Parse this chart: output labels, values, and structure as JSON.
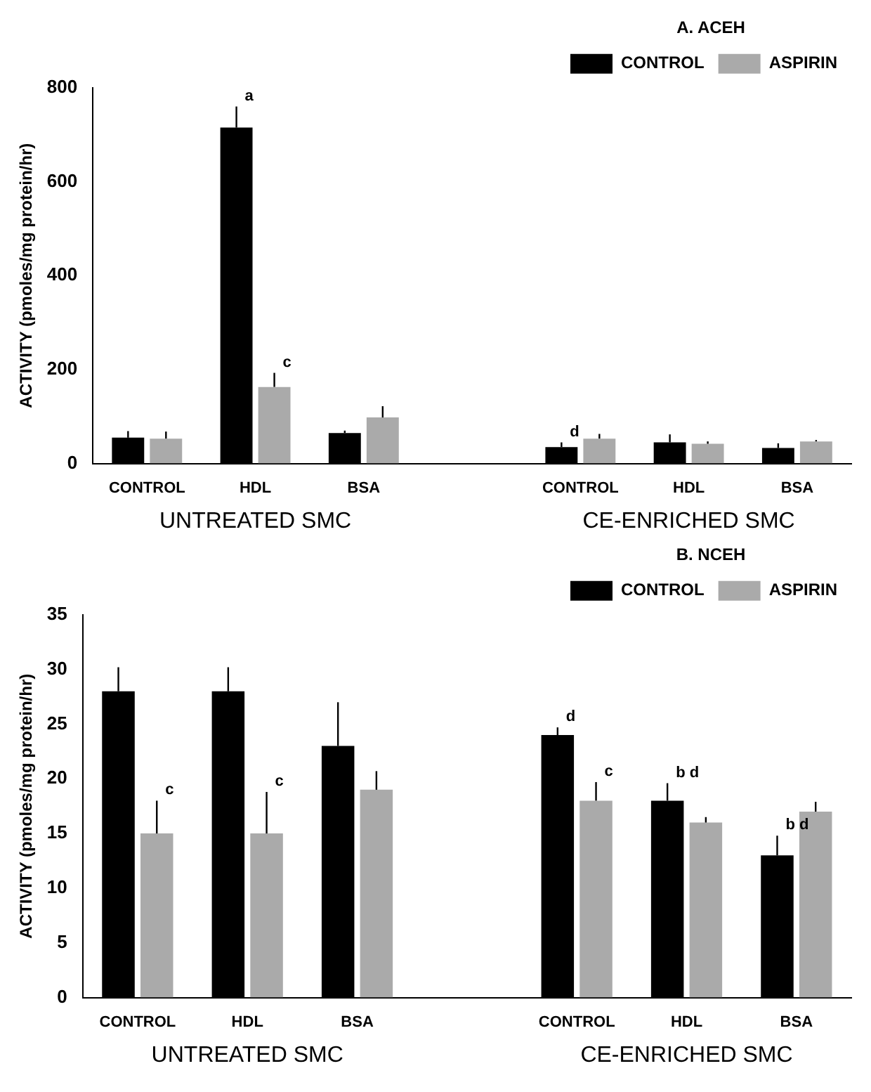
{
  "chart_data": [
    {
      "type": "bar",
      "ylabel": "ACTIVITY (pmoles/mg protein/hr)",
      "legend_title": "A. ACEH",
      "legend": "top right",
      "categories": [
        "CONTROL",
        "HDL",
        "BSA",
        null,
        "CONTROL",
        "HDL",
        "BSA"
      ],
      "ylim": [
        0,
        800
      ],
      "yticks": [
        0,
        200,
        400,
        600,
        800
      ],
      "annotations": [
        "UNTREATED SMC",
        "CE-ENRICHED SMC"
      ],
      "series": [
        {
          "name": "CONTROL",
          "color": "#000000",
          "values": [
            55,
            715,
            65,
            null,
            35,
            45,
            33
          ],
          "errors": [
            [
              55,
              69
            ],
            [
              715,
              760
            ],
            [
              65,
              70
            ],
            null,
            [
              35,
              45
            ],
            [
              45,
              62
            ],
            [
              33,
              43
            ]
          ],
          "value_labels": [
            null,
            "a",
            null,
            null,
            "d",
            null,
            null
          ]
        },
        {
          "name": "ASPIRIN",
          "color": "#aaaaaa",
          "values": [
            53,
            163,
            98,
            null,
            53,
            42,
            47
          ],
          "errors": [
            [
              53,
              68
            ],
            [
              163,
              193
            ],
            [
              98,
              122
            ],
            null,
            [
              53,
              63
            ],
            [
              42,
              47
            ],
            [
              47,
              50
            ]
          ],
          "value_labels": [
            null,
            "c",
            null,
            null,
            null,
            null,
            null
          ]
        }
      ]
    },
    {
      "type": "bar",
      "ylabel": "ACTIVITY (pmoles/mg protein/hr)",
      "legend_title": "B. NCEH",
      "legend": "top right",
      "categories": [
        "CONTROL",
        "HDL",
        "BSA",
        null,
        "CONTROL",
        "HDL",
        "BSA"
      ],
      "ylim": [
        0,
        35
      ],
      "yticks": [
        0,
        5,
        10,
        15,
        20,
        25,
        30,
        35
      ],
      "annotations": [
        "UNTREATED SMC",
        "CE-ENRICHED SMC"
      ],
      "series": [
        {
          "name": "CONTROL",
          "color": "#000000",
          "values": [
            28,
            28,
            23,
            null,
            24,
            18,
            13
          ],
          "errors": [
            [
              28,
              30.2
            ],
            [
              28,
              30.2
            ],
            [
              23,
              27
            ],
            null,
            [
              24,
              24.7
            ],
            [
              18,
              19.6
            ],
            [
              13,
              14.8
            ]
          ],
          "value_labels": [
            null,
            null,
            null,
            null,
            "d",
            "b d",
            "b d"
          ]
        },
        {
          "name": "ASPIRIN",
          "color": "#aaaaaa",
          "values": [
            15,
            15,
            19,
            null,
            18,
            16,
            17
          ],
          "errors": [
            [
              15,
              18
            ],
            [
              15,
              18.8
            ],
            [
              19,
              20.7
            ],
            null,
            [
              18,
              19.7
            ],
            [
              16,
              16.5
            ],
            [
              17,
              17.9
            ]
          ],
          "value_labels": [
            "c",
            "c",
            null,
            null,
            "c",
            null,
            null
          ]
        }
      ]
    }
  ]
}
